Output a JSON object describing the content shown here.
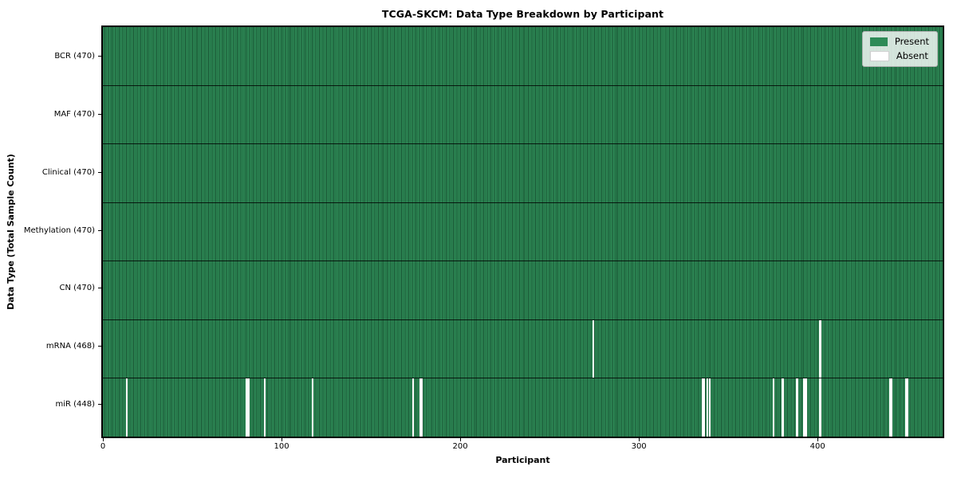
{
  "figure": {
    "title": "TCGA-SKCM: Data Type Breakdown by Participant",
    "xlabel": "Participant",
    "ylabel": "Data Type (Total Sample Count)"
  },
  "legend": {
    "present_label": "Present",
    "absent_label": "Absent"
  },
  "colors": {
    "present": "#2e8b57",
    "absent": "#ffffff",
    "cell_edge": "rgba(5,35,20,0.55)",
    "row_separator": "rgba(0,0,0,0.8)",
    "plot_border": "#000000",
    "legend_bg": "rgba(255,255,255,0.8)",
    "legend_border": "#b0b0b0",
    "absent_patch_border": "#d0d0d0"
  },
  "chart_data": {
    "type": "heatmap",
    "title": "TCGA-SKCM: Data Type Breakdown by Participant",
    "xlabel": "Participant",
    "ylabel": "Data Type (Total Sample Count)",
    "n_participants": 470,
    "x_ticks": [
      0,
      100,
      200,
      300,
      400
    ],
    "legend_entries": [
      "Present",
      "Absent"
    ],
    "legend_position": "upper right",
    "grid": false,
    "rows": [
      {
        "data_type": "BCR",
        "label": "BCR (470)",
        "total": 470,
        "absent_participants": []
      },
      {
        "data_type": "MAF",
        "label": "MAF (470)",
        "total": 470,
        "absent_participants": []
      },
      {
        "data_type": "Clinical",
        "label": "Clinical (470)",
        "total": 470,
        "absent_participants": []
      },
      {
        "data_type": "Methylation",
        "label": "Methylation (470)",
        "total": 470,
        "absent_participants": []
      },
      {
        "data_type": "CN",
        "label": "CN (470)",
        "total": 470,
        "absent_participants": []
      },
      {
        "data_type": "mRNA",
        "label": "mRNA (468)",
        "total": 468,
        "absent_participants": [
          274,
          401
        ]
      },
      {
        "data_type": "miR",
        "label": "miR (448)",
        "total": 448,
        "absent_participants": [
          13,
          80,
          81,
          90,
          117,
          173,
          177,
          178,
          335,
          336,
          338,
          339,
          375,
          380,
          388,
          392,
          393,
          401,
          440,
          441,
          449,
          450
        ]
      }
    ]
  }
}
